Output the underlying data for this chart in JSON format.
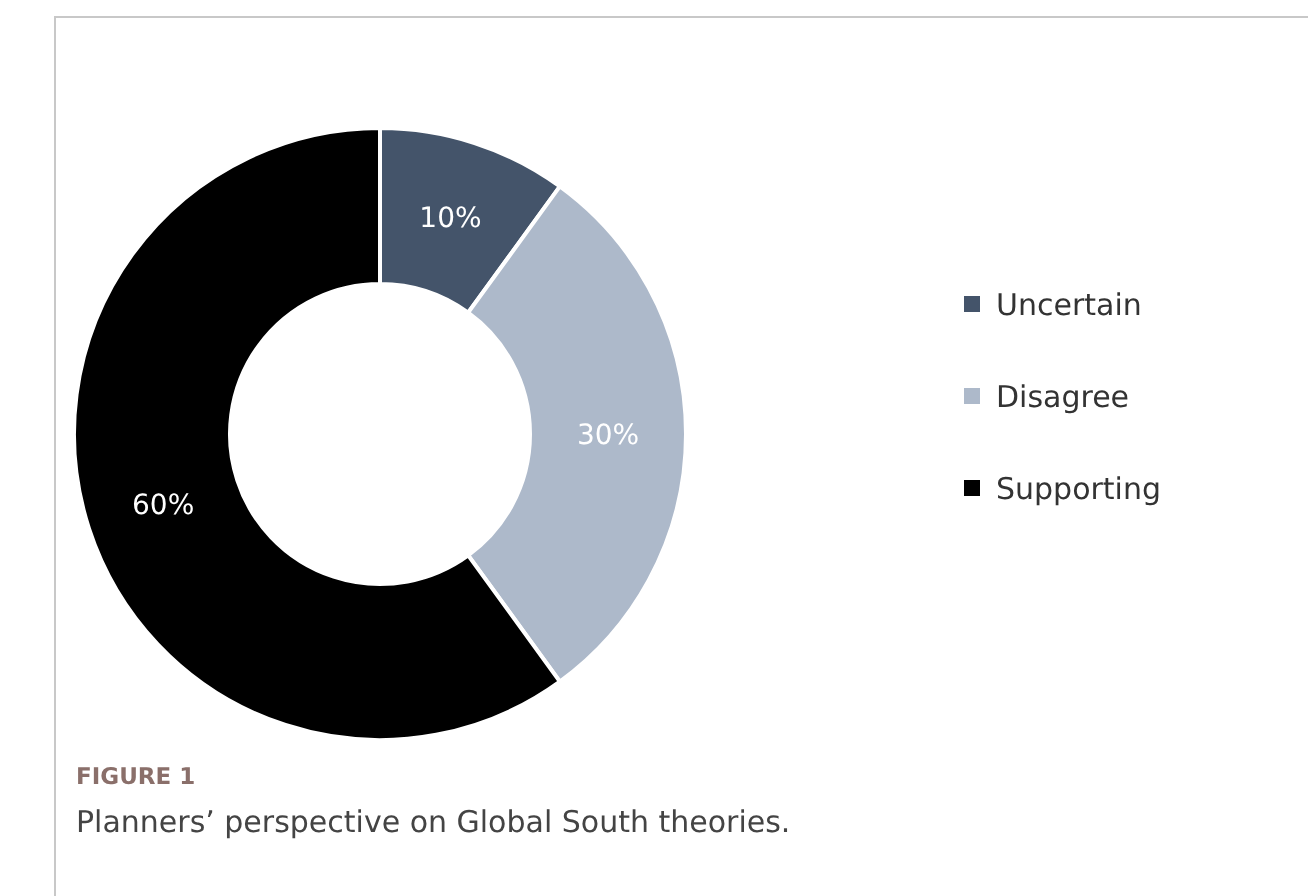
{
  "chart_data": {
    "type": "donut",
    "title": "FIGURE 1",
    "subtitle": "Planners’ perspective on Global South theories.",
    "categories": [
      "Uncertain",
      "Disagree",
      "Supporting"
    ],
    "values": [
      10,
      30,
      60
    ],
    "colors": [
      "#44546a",
      "#adb9ca",
      "#000000"
    ],
    "value_labels": [
      "10%",
      "30%",
      "60%"
    ],
    "legend": "right"
  }
}
